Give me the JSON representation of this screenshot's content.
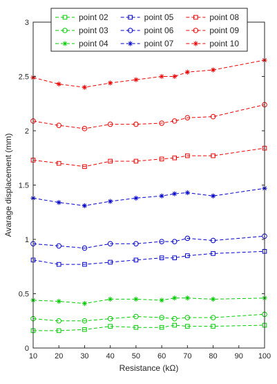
{
  "chart_data": {
    "type": "line",
    "title": "",
    "xlabel": "Resistance (kΩ)",
    "ylabel": "Avarage displacement (mm)",
    "xlim": [
      10,
      100
    ],
    "ylim": [
      0,
      3
    ],
    "xticks": [
      10,
      20,
      30,
      40,
      50,
      60,
      70,
      80,
      90,
      100
    ],
    "yticks": [
      0,
      0.5,
      1,
      1.5,
      2,
      2.5,
      3
    ],
    "xtick_labels": [
      "10",
      "20",
      "30",
      "40",
      "50",
      "60",
      "70",
      "80",
      "90",
      "100"
    ],
    "ytick_labels": [
      "0",
      "0.5",
      "1",
      "1.5",
      "2",
      "2.5",
      "3"
    ],
    "grid": false,
    "legend_placement": "top",
    "legend_columns": 3,
    "x": [
      10,
      20,
      30,
      40,
      50,
      60,
      65,
      70,
      80,
      100
    ],
    "series": [
      {
        "name": "point 02",
        "color": "#00cc00",
        "marker": "square",
        "values": [
          0.16,
          0.16,
          0.17,
          0.2,
          0.19,
          0.19,
          0.21,
          0.2,
          0.2,
          0.21
        ]
      },
      {
        "name": "point 03",
        "color": "#00cc00",
        "marker": "circle",
        "values": [
          0.27,
          0.25,
          0.25,
          0.27,
          0.29,
          0.28,
          0.27,
          0.28,
          0.28,
          0.31
        ]
      },
      {
        "name": "point 04",
        "color": "#00cc00",
        "marker": "star",
        "values": [
          0.44,
          0.43,
          0.41,
          0.45,
          0.45,
          0.44,
          0.46,
          0.46,
          0.45,
          0.46
        ]
      },
      {
        "name": "point 05",
        "color": "#0000cc",
        "marker": "square",
        "values": [
          0.81,
          0.77,
          0.77,
          0.79,
          0.81,
          0.83,
          0.83,
          0.85,
          0.87,
          0.89
        ]
      },
      {
        "name": "point 06",
        "color": "#0000cc",
        "marker": "circle",
        "values": [
          0.96,
          0.94,
          0.92,
          0.96,
          0.96,
          0.98,
          0.98,
          1.01,
          0.99,
          1.03
        ]
      },
      {
        "name": "point 07",
        "color": "#0000cc",
        "marker": "star",
        "values": [
          1.38,
          1.34,
          1.31,
          1.35,
          1.38,
          1.4,
          1.42,
          1.43,
          1.4,
          1.47
        ]
      },
      {
        "name": "point 08",
        "color": "#ee0000",
        "marker": "square",
        "values": [
          1.73,
          1.7,
          1.67,
          1.72,
          1.72,
          1.74,
          1.75,
          1.77,
          1.77,
          1.84
        ]
      },
      {
        "name": "point 09",
        "color": "#ee0000",
        "marker": "circle",
        "values": [
          2.09,
          2.05,
          2.02,
          2.06,
          2.06,
          2.07,
          2.09,
          2.12,
          2.13,
          2.24
        ]
      },
      {
        "name": "point 10",
        "color": "#ee0000",
        "marker": "star",
        "values": [
          2.49,
          2.43,
          2.4,
          2.44,
          2.47,
          2.5,
          2.5,
          2.54,
          2.56,
          2.65
        ]
      }
    ]
  }
}
